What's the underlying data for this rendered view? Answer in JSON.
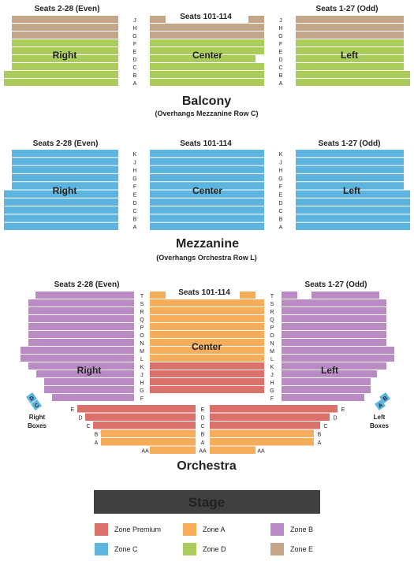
{
  "balcony": {
    "title": "Balcony",
    "subtitle": "(Overhangs Mezzanine Row C)",
    "left_header": "Seats 2-28 (Even)",
    "center_header": "Seats 101-114",
    "right_header": "Seats 1-27 (Odd)",
    "left_section": "Right",
    "center_section": "Center",
    "right_section": "Left",
    "rows": [
      "J",
      "H",
      "G",
      "F",
      "E",
      "D",
      "C",
      "B",
      "A"
    ]
  },
  "mezzanine": {
    "title": "Mezzanine",
    "subtitle": "(Overhangs Orchestra Row L)",
    "left_header": "Seats 2-28 (Even)",
    "center_header": "Seats 101-114",
    "right_header": "Seats 1-27 (Odd)",
    "left_section": "Right",
    "center_section": "Center",
    "right_section": "Left",
    "rows": [
      "K",
      "J",
      "H",
      "G",
      "F",
      "E",
      "D",
      "C",
      "B",
      "A"
    ]
  },
  "orchestra": {
    "title": "Orchestra",
    "left_header": "Seats 2-28 (Even)",
    "center_header": "Seats 101-114",
    "right_header": "Seats 1-27 (Odd)",
    "left_section": "Right",
    "center_section": "Center",
    "right_section": "Left",
    "upper_rows": [
      "T",
      "S",
      "R",
      "Q",
      "P",
      "O",
      "N",
      "M",
      "L",
      "K",
      "J",
      "H",
      "G",
      "F"
    ],
    "lower_rows": [
      "E",
      "D",
      "C",
      "B",
      "A",
      "AA"
    ],
    "right_boxes_label": [
      "Right",
      "Boxes"
    ],
    "left_boxes_label": [
      "Left",
      "Boxes"
    ],
    "right_box_letters": [
      "D",
      "C"
    ],
    "left_box_letters": [
      "B",
      "A"
    ]
  },
  "stage": {
    "label": "Stage"
  },
  "legend": [
    {
      "label": "Zone Premium",
      "color": "#d9706a"
    },
    {
      "label": "Zone A",
      "color": "#f5ad5c"
    },
    {
      "label": "Zone B",
      "color": "#b98ac4"
    },
    {
      "label": "Zone C",
      "color": "#5db4df"
    },
    {
      "label": "Zone D",
      "color": "#a9cc5c"
    },
    {
      "label": "Zone E",
      "color": "#c4a588"
    }
  ]
}
